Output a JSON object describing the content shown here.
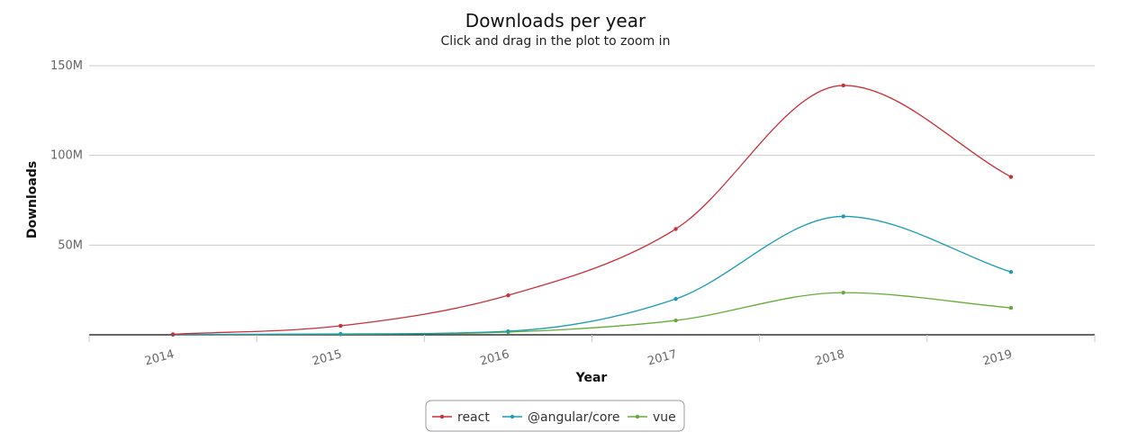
{
  "chart_data": {
    "type": "line",
    "title": "Downloads per year",
    "subtitle": "Click and drag in the plot to zoom in",
    "xlabel": "Year",
    "ylabel": "Downloads",
    "categories": [
      "2014",
      "2015",
      "2016",
      "2017",
      "2018",
      "2019"
    ],
    "y_ticks": [
      "150M",
      "100M",
      "50M"
    ],
    "ylim": [
      0,
      150000000
    ],
    "grid": true,
    "legend": "bottom-center",
    "series": [
      {
        "name": "react",
        "color": "#c8313a",
        "values": [
          300000,
          5000000,
          22000000,
          59000000,
          139000000,
          88000000
        ]
      },
      {
        "name": "@angular/core",
        "color": "#1b9cb0",
        "values": [
          100000,
          500000,
          2000000,
          20000000,
          66000000,
          35000000
        ]
      },
      {
        "name": "vue",
        "color": "#66ab3a",
        "values": [
          50000,
          300000,
          1500000,
          8000000,
          23500000,
          15000000
        ]
      }
    ]
  }
}
